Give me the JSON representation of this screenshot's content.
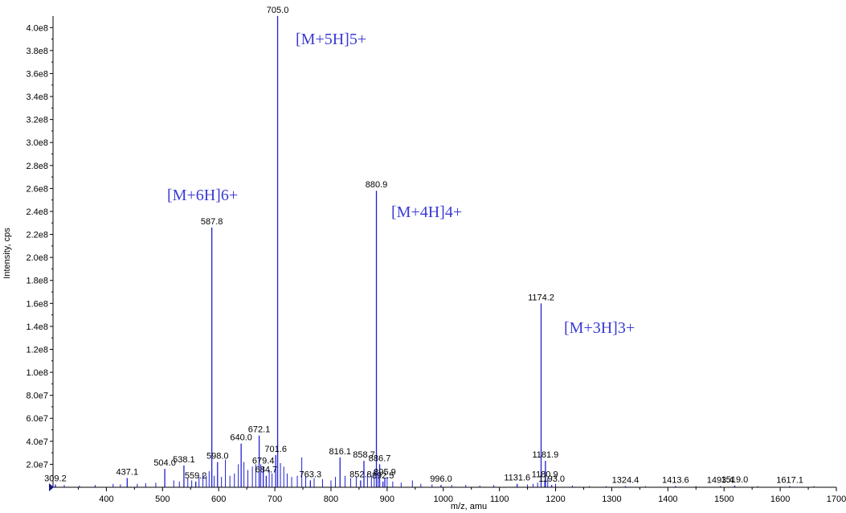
{
  "chart_data": {
    "type": "bar",
    "xlabel": "m/z, amu",
    "ylabel": "Intensity, cps",
    "xlim": [
      305,
      1700
    ],
    "ylim": [
      0,
      410000000.0
    ],
    "grid": false,
    "x_ticks": [
      400,
      500,
      600,
      700,
      800,
      900,
      1000,
      1100,
      1200,
      1300,
      1400,
      1500,
      1600,
      1700
    ],
    "y_ticks": [
      {
        "value": 20000000.0,
        "label": "2.0e7"
      },
      {
        "value": 40000000.0,
        "label": "4.0e7"
      },
      {
        "value": 60000000.0,
        "label": "6.0e7"
      },
      {
        "value": 80000000.0,
        "label": "8.0e7"
      },
      {
        "value": 100000000.0,
        "label": "1.0e8"
      },
      {
        "value": 120000000.0,
        "label": "1.2e8"
      },
      {
        "value": 140000000.0,
        "label": "1.4e8"
      },
      {
        "value": 160000000.0,
        "label": "1.6e8"
      },
      {
        "value": 180000000.0,
        "label": "1.8e8"
      },
      {
        "value": 200000000.0,
        "label": "2.0e8"
      },
      {
        "value": 220000000.0,
        "label": "2.2e8"
      },
      {
        "value": 240000000.0,
        "label": "2.4e8"
      },
      {
        "value": 260000000.0,
        "label": "2.6e8"
      },
      {
        "value": 280000000.0,
        "label": "2.8e8"
      },
      {
        "value": 300000000.0,
        "label": "3.0e8"
      },
      {
        "value": 320000000.0,
        "label": "3.2e8"
      },
      {
        "value": 340000000.0,
        "label": "3.4e8"
      },
      {
        "value": 360000000.0,
        "label": "3.6e8"
      },
      {
        "value": 380000000.0,
        "label": "3.8e8"
      },
      {
        "value": 400000000.0,
        "label": "4.0e8"
      }
    ],
    "line_color": "#1f1fd6",
    "annotation_color": "#3b3bd6",
    "labeled_peaks": [
      {
        "x": 309.2,
        "y": 2500000.0,
        "label": "309.2"
      },
      {
        "x": 437.1,
        "y": 8000000.0,
        "label": "437.1"
      },
      {
        "x": 504.0,
        "y": 16000000.0,
        "label": "504.0"
      },
      {
        "x": 538.1,
        "y": 19000000.0,
        "label": "538.1"
      },
      {
        "x": 559.2,
        "y": 5000000.0,
        "label": "559.2"
      },
      {
        "x": 587.8,
        "y": 226000000.0,
        "label": "587.8"
      },
      {
        "x": 598.0,
        "y": 22000000.0,
        "label": "598.0"
      },
      {
        "x": 640.0,
        "y": 38000000.0,
        "label": "640.0"
      },
      {
        "x": 672.1,
        "y": 45000000.0,
        "label": "672.1"
      },
      {
        "x": 679.4,
        "y": 18000000.0,
        "label": "679.4"
      },
      {
        "x": 684.7,
        "y": 10000000.0,
        "label": "684.7"
      },
      {
        "x": 701.6,
        "y": 28000000.0,
        "label": "701.6"
      },
      {
        "x": 705.0,
        "y": 410000000.0,
        "label": "705.0"
      },
      {
        "x": 763.3,
        "y": 6000000.0,
        "label": "763.3"
      },
      {
        "x": 816.1,
        "y": 26000000.0,
        "label": "816.1"
      },
      {
        "x": 852.8,
        "y": 6000000.0,
        "label": "852.8"
      },
      {
        "x": 858.7,
        "y": 23000000.0,
        "label": "858.7"
      },
      {
        "x": 880.9,
        "y": 258000000.0,
        "label": "880.9"
      },
      {
        "x": 886.7,
        "y": 20000000.0,
        "label": "886.7"
      },
      {
        "x": 892.5,
        "y": 5000000.0,
        "label": "892.5"
      },
      {
        "x": 895.9,
        "y": 8000000.0,
        "label": "895.9"
      },
      {
        "x": 996.0,
        "y": 2000000.0,
        "label": "996.0"
      },
      {
        "x": 1131.6,
        "y": 3000000.0,
        "label": "1131.6"
      },
      {
        "x": 1174.2,
        "y": 160000000.0,
        "label": "1174.2"
      },
      {
        "x": 1180.9,
        "y": 6000000.0,
        "label": "1180.9"
      },
      {
        "x": 1181.9,
        "y": 23000000.0,
        "label": "1181.9"
      },
      {
        "x": 1193.0,
        "y": 2000000.0,
        "label": "1193.0"
      },
      {
        "x": 1324.4,
        "y": 1000000.0,
        "label": "1324.4"
      },
      {
        "x": 1413.6,
        "y": 1000000.0,
        "label": "1413.6"
      },
      {
        "x": 1493.4,
        "y": 1000000.0,
        "label": "1493.4"
      },
      {
        "x": 1519.0,
        "y": 1500000.0,
        "label": "1519.0"
      },
      {
        "x": 1617.1,
        "y": 1000000.0,
        "label": "1617.1"
      }
    ],
    "minor_peaks": [
      {
        "x": 325,
        "y": 2000000.0
      },
      {
        "x": 352,
        "y": 1500000.0
      },
      {
        "x": 380,
        "y": 2000000.0
      },
      {
        "x": 412,
        "y": 3000000.0
      },
      {
        "x": 425,
        "y": 2500000.0
      },
      {
        "x": 455,
        "y": 3000000.0
      },
      {
        "x": 470,
        "y": 3500000.0
      },
      {
        "x": 488,
        "y": 4000000.0
      },
      {
        "x": 520,
        "y": 6000000.0
      },
      {
        "x": 530,
        "y": 5000000.0
      },
      {
        "x": 545,
        "y": 8000000.0
      },
      {
        "x": 552,
        "y": 6000000.0
      },
      {
        "x": 565,
        "y": 9000000.0
      },
      {
        "x": 572,
        "y": 12000000.0
      },
      {
        "x": 578,
        "y": 10000000.0
      },
      {
        "x": 583,
        "y": 14000000.0
      },
      {
        "x": 592,
        "y": 10000000.0
      },
      {
        "x": 605,
        "y": 9000000.0
      },
      {
        "x": 612,
        "y": 24000000.0
      },
      {
        "x": 620,
        "y": 10000000.0
      },
      {
        "x": 628,
        "y": 12000000.0
      },
      {
        "x": 635,
        "y": 20000000.0
      },
      {
        "x": 645,
        "y": 22000000.0
      },
      {
        "x": 652,
        "y": 15000000.0
      },
      {
        "x": 660,
        "y": 18000000.0
      },
      {
        "x": 666,
        "y": 20000000.0
      },
      {
        "x": 675,
        "y": 20000000.0
      },
      {
        "x": 690,
        "y": 15000000.0
      },
      {
        "x": 695,
        "y": 12000000.0
      },
      {
        "x": 710,
        "y": 21000000.0
      },
      {
        "x": 716,
        "y": 18000000.0
      },
      {
        "x": 722,
        "y": 12000000.0
      },
      {
        "x": 730,
        "y": 9000000.0
      },
      {
        "x": 740,
        "y": 10000000.0
      },
      {
        "x": 748,
        "y": 26000000.0
      },
      {
        "x": 755,
        "y": 10000000.0
      },
      {
        "x": 770,
        "y": 8000000.0
      },
      {
        "x": 785,
        "y": 7000000.0
      },
      {
        "x": 800,
        "y": 6000000.0
      },
      {
        "x": 808,
        "y": 9000000.0
      },
      {
        "x": 825,
        "y": 10000000.0
      },
      {
        "x": 835,
        "y": 8000000.0
      },
      {
        "x": 845,
        "y": 9000000.0
      },
      {
        "x": 865,
        "y": 12000000.0
      },
      {
        "x": 872,
        "y": 10000000.0
      },
      {
        "x": 877,
        "y": 15000000.0
      },
      {
        "x": 884,
        "y": 12000000.0
      },
      {
        "x": 900,
        "y": 9000000.0
      },
      {
        "x": 910,
        "y": 5000000.0
      },
      {
        "x": 925,
        "y": 4000000.0
      },
      {
        "x": 945,
        "y": 6000000.0
      },
      {
        "x": 960,
        "y": 3000000.0
      },
      {
        "x": 980,
        "y": 2500000.0
      },
      {
        "x": 1015,
        "y": 2000000.0
      },
      {
        "x": 1040,
        "y": 2000000.0
      },
      {
        "x": 1065,
        "y": 1500000.0
      },
      {
        "x": 1090,
        "y": 2000000.0
      },
      {
        "x": 1150,
        "y": 2500000.0
      },
      {
        "x": 1160,
        "y": 3000000.0
      },
      {
        "x": 1168,
        "y": 4000000.0
      },
      {
        "x": 1186,
        "y": 8000000.0
      },
      {
        "x": 1200,
        "y": 3000000.0
      },
      {
        "x": 1230,
        "y": 1500000.0
      },
      {
        "x": 1260,
        "y": 1000000.0
      },
      {
        "x": 1290,
        "y": 1000000.0
      },
      {
        "x": 1360,
        "y": 1000000.0
      },
      {
        "x": 1450,
        "y": 1000000.0
      },
      {
        "x": 1560,
        "y": 1000000.0
      },
      {
        "x": 1660,
        "y": 1000000.0
      }
    ],
    "annotations": [
      {
        "text": "[M+5H]5+",
        "x": 705.0
      },
      {
        "text": "[M+6H]6+",
        "x": 587.8
      },
      {
        "text": "[M+4H]4+",
        "x": 880.9
      },
      {
        "text": "[M+3H]3+",
        "x": 1174.2
      }
    ]
  }
}
